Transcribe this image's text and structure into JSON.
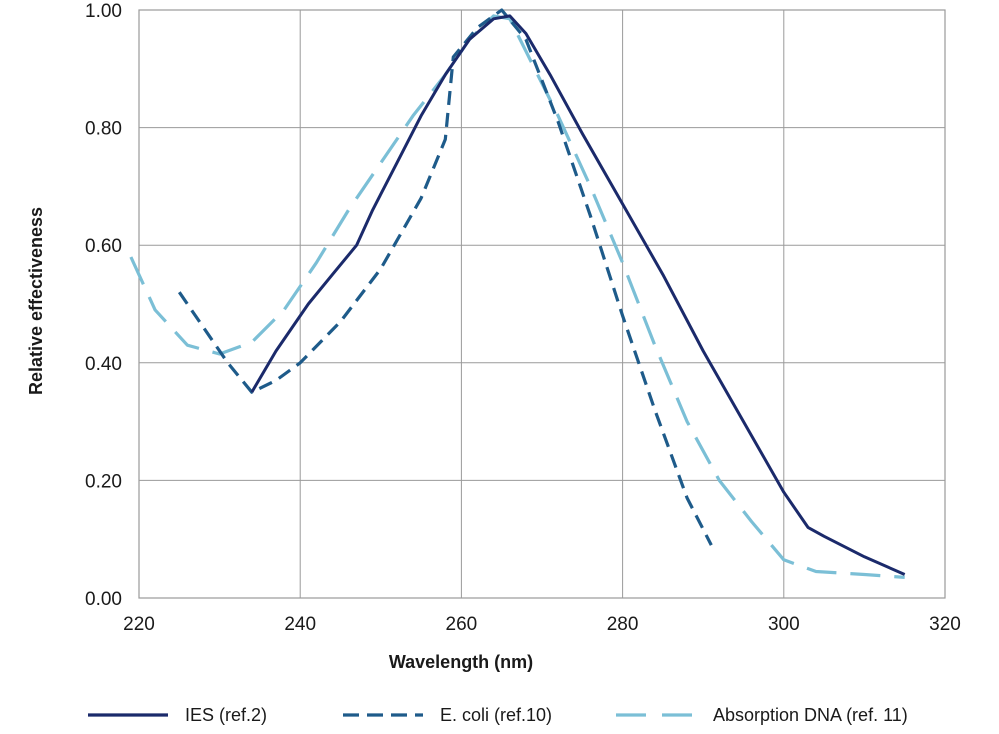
{
  "chart_data": {
    "type": "line",
    "xlabel": "Wavelength (nm)",
    "ylabel": "Relative effectiveness",
    "xlim": [
      220,
      320
    ],
    "ylim": [
      0,
      1.0
    ],
    "x_ticks": [
      "220",
      "240",
      "260",
      "280",
      "300",
      "320"
    ],
    "y_ticks": [
      "0.00",
      "0.20",
      "0.40",
      "0.60",
      "0.80",
      "1.00"
    ],
    "grid": true,
    "legend_position": "bottom",
    "series": [
      {
        "name": "IES (ref.2)",
        "color": "#1b2a6b",
        "style": "solid",
        "x": [
          234,
          237,
          241,
          244,
          247,
          249,
          252,
          255,
          258,
          261,
          264,
          266,
          268,
          271,
          275,
          280,
          285,
          290,
          295,
          300,
          303,
          305,
          310,
          315
        ],
        "y": [
          0.35,
          0.42,
          0.5,
          0.55,
          0.6,
          0.66,
          0.74,
          0.82,
          0.89,
          0.95,
          0.985,
          0.99,
          0.96,
          0.89,
          0.79,
          0.67,
          0.55,
          0.42,
          0.3,
          0.18,
          0.12,
          0.105,
          0.07,
          0.04
        ]
      },
      {
        "name": "E. coli (ref.10)",
        "color": "#1e5b8a",
        "style": "dashed",
        "x": [
          225,
          228,
          231,
          234,
          237,
          240,
          245,
          250,
          255,
          258,
          259,
          262,
          265,
          268,
          272,
          276,
          280,
          284,
          288,
          291
        ],
        "y": [
          0.52,
          0.46,
          0.4,
          0.35,
          0.37,
          0.4,
          0.47,
          0.56,
          0.68,
          0.78,
          0.92,
          0.97,
          1.0,
          0.95,
          0.81,
          0.65,
          0.48,
          0.32,
          0.17,
          0.09
        ]
      },
      {
        "name": "Absorption DNA (ref. 11)",
        "color": "#7bbfd6",
        "style": "longdash",
        "x": [
          219,
          222,
          226,
          230,
          234,
          238,
          242,
          246,
          250,
          254,
          258,
          261,
          264,
          266,
          268,
          272,
          276,
          280,
          284,
          288,
          292,
          296,
          300,
          304,
          310,
          315
        ],
        "y": [
          0.58,
          0.49,
          0.43,
          0.415,
          0.435,
          0.49,
          0.57,
          0.66,
          0.74,
          0.82,
          0.89,
          0.95,
          0.99,
          0.985,
          0.93,
          0.82,
          0.7,
          0.57,
          0.43,
          0.3,
          0.2,
          0.13,
          0.065,
          0.045,
          0.04,
          0.035
        ]
      }
    ]
  }
}
